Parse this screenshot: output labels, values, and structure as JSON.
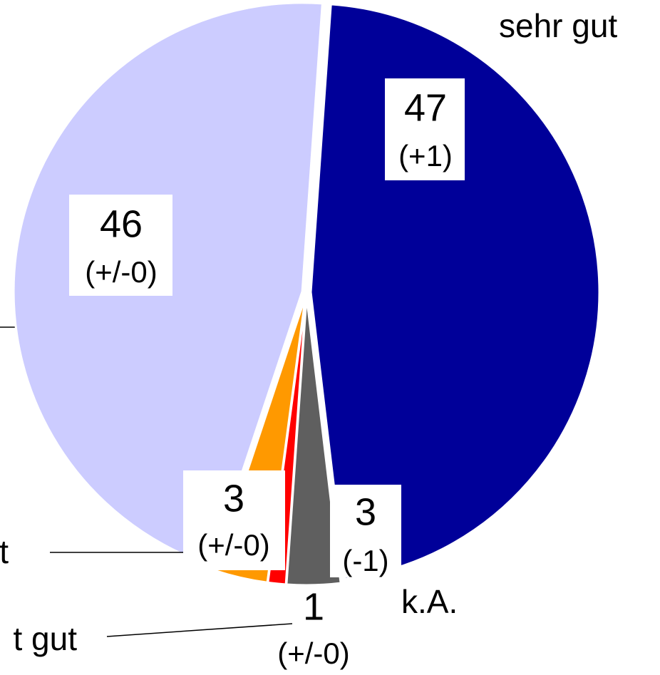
{
  "chart_data": {
    "type": "pie",
    "categories": [
      "sehr gut",
      "k.A.",
      "t gut",
      "t",
      null
    ],
    "values": [
      47,
      3,
      1,
      3,
      46
    ],
    "changes": [
      "(+1)",
      "(-1)",
      "(+/-0)",
      "(+/-0)",
      "(+/-0)"
    ],
    "colors": [
      "#000099",
      "#5f5f5f",
      "#ff0000",
      "#ff9900",
      "#ccccff"
    ]
  }
}
